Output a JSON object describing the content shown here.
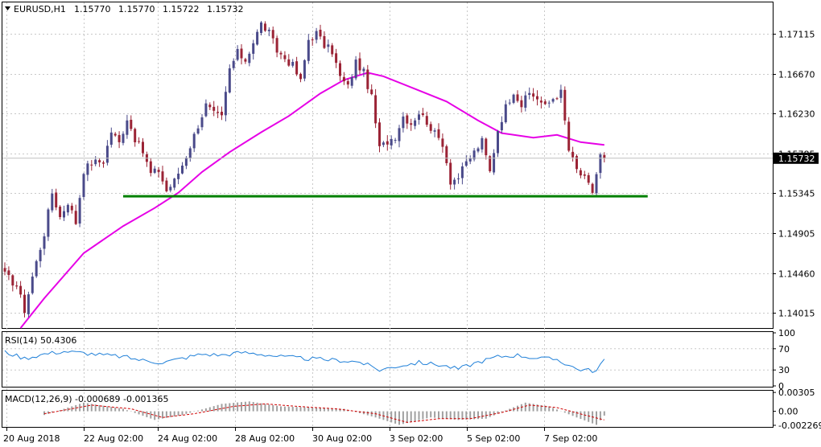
{
  "header": {
    "symbol": "EURUSD,H1",
    "open": "1.15770",
    "high": "1.15770",
    "low": "1.15722",
    "close": "1.15732"
  },
  "colors": {
    "bull_bar": "#4a4a8a",
    "bear_bar": "#9b2335",
    "ma_line": "#e600e6",
    "support_line": "#008000",
    "rsi_line": "#1e7fd8",
    "macd_hist": "#a0a0a0",
    "macd_signal": "#d00000",
    "grid": "#c8c8c8",
    "price_tag_bg": "#000000"
  },
  "chart_data": [
    {
      "type": "candlestick",
      "title": "EURUSD,H1",
      "y_ticks": [
        "1.17115",
        "1.16670",
        "1.16230",
        "1.15785",
        "1.15345",
        "1.14905",
        "1.14460",
        "1.14015"
      ],
      "y_range": [
        1.1385,
        1.1745
      ],
      "current_price_label": "1.15732",
      "current_price": 1.15732,
      "x_labels": [
        "20 Aug 2018",
        "22 Aug 02:00",
        "24 Aug 02:00",
        "28 Aug 02:00",
        "30 Aug 02:00",
        "3 Sep 02:00",
        "5 Sep 02:00",
        "7 Sep 02:00"
      ],
      "support_level": 1.1531,
      "close_path": [
        [
          0,
          1.1444
        ],
        [
          3,
          1.1432
        ],
        [
          5,
          1.1405
        ],
        [
          7,
          1.1442
        ],
        [
          10,
          1.149
        ],
        [
          12,
          1.1535
        ],
        [
          14,
          1.1508
        ],
        [
          16,
          1.1525
        ],
        [
          18,
          1.1502
        ],
        [
          20,
          1.156
        ],
        [
          22,
          1.1568
        ],
        [
          25,
          1.157
        ],
        [
          27,
          1.1603
        ],
        [
          29,
          1.159
        ],
        [
          31,
          1.1618
        ],
        [
          33,
          1.1595
        ],
        [
          35,
          1.158
        ],
        [
          37,
          1.1556
        ],
        [
          39,
          1.156
        ],
        [
          41,
          1.1537
        ],
        [
          43,
          1.1548
        ],
        [
          45,
          1.1566
        ],
        [
          47,
          1.1587
        ],
        [
          49,
          1.161
        ],
        [
          51,
          1.1632
        ],
        [
          53,
          1.1622
        ],
        [
          55,
          1.1618
        ],
        [
          57,
          1.1672
        ],
        [
          59,
          1.169
        ],
        [
          61,
          1.1682
        ],
        [
          63,
          1.1702
        ],
        [
          65,
          1.1722
        ],
        [
          67,
          1.1712
        ],
        [
          69,
          1.1692
        ],
        [
          71,
          1.1684
        ],
        [
          73,
          1.1676
        ],
        [
          75,
          1.1658
        ],
        [
          77,
          1.1705
        ],
        [
          79,
          1.1712
        ],
        [
          81,
          1.1698
        ],
        [
          83,
          1.1692
        ],
        [
          85,
          1.1663
        ],
        [
          87,
          1.1652
        ],
        [
          89,
          1.168
        ],
        [
          91,
          1.1668
        ],
        [
          93,
          1.164
        ],
        [
          95,
          1.1584
        ],
        [
          97,
          1.1592
        ],
        [
          99,
          1.1598
        ],
        [
          101,
          1.162
        ],
        [
          103,
          1.1612
        ],
        [
          105,
          1.1624
        ],
        [
          107,
          1.1614
        ],
        [
          109,
          1.16
        ],
        [
          111,
          1.159
        ],
        [
          113,
          1.1548
        ],
        [
          115,
          1.1552
        ],
        [
          117,
          1.1568
        ],
        [
          119,
          1.158
        ],
        [
          121,
          1.1592
        ],
        [
          123,
          1.1558
        ],
        [
          125,
          1.1605
        ],
        [
          127,
          1.163
        ],
        [
          129,
          1.1648
        ],
        [
          131,
          1.1632
        ],
        [
          133,
          1.1645
        ],
        [
          135,
          1.164
        ],
        [
          137,
          1.163
        ],
        [
          139,
          1.164
        ],
        [
          141,
          1.1646
        ],
        [
          143,
          1.1582
        ],
        [
          145,
          1.156
        ],
        [
          147,
          1.155
        ],
        [
          149,
          1.1536
        ],
        [
          151,
          1.1576
        ],
        [
          152,
          1.1573
        ]
      ],
      "ma_path": [
        [
          4,
          1.1385
        ],
        [
          10,
          1.1418
        ],
        [
          20,
          1.1468
        ],
        [
          30,
          1.1498
        ],
        [
          38,
          1.1518
        ],
        [
          44,
          1.1535
        ],
        [
          50,
          1.1558
        ],
        [
          57,
          1.158
        ],
        [
          65,
          1.1602
        ],
        [
          72,
          1.162
        ],
        [
          80,
          1.1645
        ],
        [
          86,
          1.166
        ],
        [
          92,
          1.1668
        ],
        [
          96,
          1.1664
        ],
        [
          104,
          1.165
        ],
        [
          112,
          1.1636
        ],
        [
          120,
          1.1615
        ],
        [
          126,
          1.1601
        ],
        [
          134,
          1.1596
        ],
        [
          140,
          1.1599
        ],
        [
          146,
          1.1591
        ],
        [
          152,
          1.1588
        ]
      ]
    },
    {
      "type": "line",
      "title": "RSI(14) 50.4306",
      "y_ticks": [
        "100",
        "70",
        "30",
        "0"
      ],
      "y_range": [
        0,
        100
      ],
      "series": [
        {
          "name": "RSI(14)",
          "points": [
            [
              0,
              64
            ],
            [
              5,
              52
            ],
            [
              10,
              60
            ],
            [
              15,
              65
            ],
            [
              20,
              62
            ],
            [
              25,
              58
            ],
            [
              30,
              55
            ],
            [
              35,
              48
            ],
            [
              40,
              44
            ],
            [
              45,
              52
            ],
            [
              50,
              60
            ],
            [
              55,
              58
            ],
            [
              60,
              63
            ],
            [
              65,
              60
            ],
            [
              70,
              55
            ],
            [
              75,
              52
            ],
            [
              80,
              50
            ],
            [
              85,
              48
            ],
            [
              90,
              45
            ],
            [
              95,
              30
            ],
            [
              100,
              38
            ],
            [
              105,
              44
            ],
            [
              110,
              40
            ],
            [
              115,
              32
            ],
            [
              120,
              45
            ],
            [
              125,
              55
            ],
            [
              130,
              58
            ],
            [
              135,
              52
            ],
            [
              140,
              50
            ],
            [
              145,
              32
            ],
            [
              150,
              28
            ],
            [
              152,
              50
            ]
          ]
        }
      ]
    },
    {
      "type": "histogram",
      "title": "MACD(12,26,9) -0.000689 -0.001365",
      "y_ticks": [
        "0.00305",
        "0.00",
        "-0.002269"
      ],
      "y_range": [
        -0.0024,
        0.0032
      ],
      "hist_path": [
        [
          10,
          -0.0006
        ],
        [
          20,
          0.0014
        ],
        [
          30,
          0.0004
        ],
        [
          38,
          -0.0014
        ],
        [
          45,
          -0.0006
        ],
        [
          55,
          0.0012
        ],
        [
          62,
          0.0016
        ],
        [
          70,
          0.0008
        ],
        [
          78,
          0.0006
        ],
        [
          86,
          0.0004
        ],
        [
          94,
          -0.001
        ],
        [
          100,
          -0.0022
        ],
        [
          108,
          -0.001
        ],
        [
          115,
          -0.0014
        ],
        [
          122,
          -0.0012
        ],
        [
          128,
          0.0004
        ],
        [
          132,
          0.0014
        ],
        [
          138,
          0.0008
        ],
        [
          145,
          -0.001
        ],
        [
          150,
          -0.0022
        ],
        [
          152,
          -0.0007
        ]
      ],
      "signal_path": [
        [
          10,
          -0.0004
        ],
        [
          22,
          0.001
        ],
        [
          32,
          0.0004
        ],
        [
          40,
          -0.001
        ],
        [
          48,
          -0.0004
        ],
        [
          58,
          0.0008
        ],
        [
          66,
          0.0012
        ],
        [
          74,
          0.0008
        ],
        [
          84,
          0.0004
        ],
        [
          94,
          -0.0004
        ],
        [
          102,
          -0.0018
        ],
        [
          110,
          -0.0012
        ],
        [
          118,
          -0.0012
        ],
        [
          126,
          -0.0002
        ],
        [
          133,
          0.001
        ],
        [
          140,
          0.0006
        ],
        [
          147,
          -0.0006
        ],
        [
          152,
          -0.0014
        ]
      ]
    }
  ]
}
